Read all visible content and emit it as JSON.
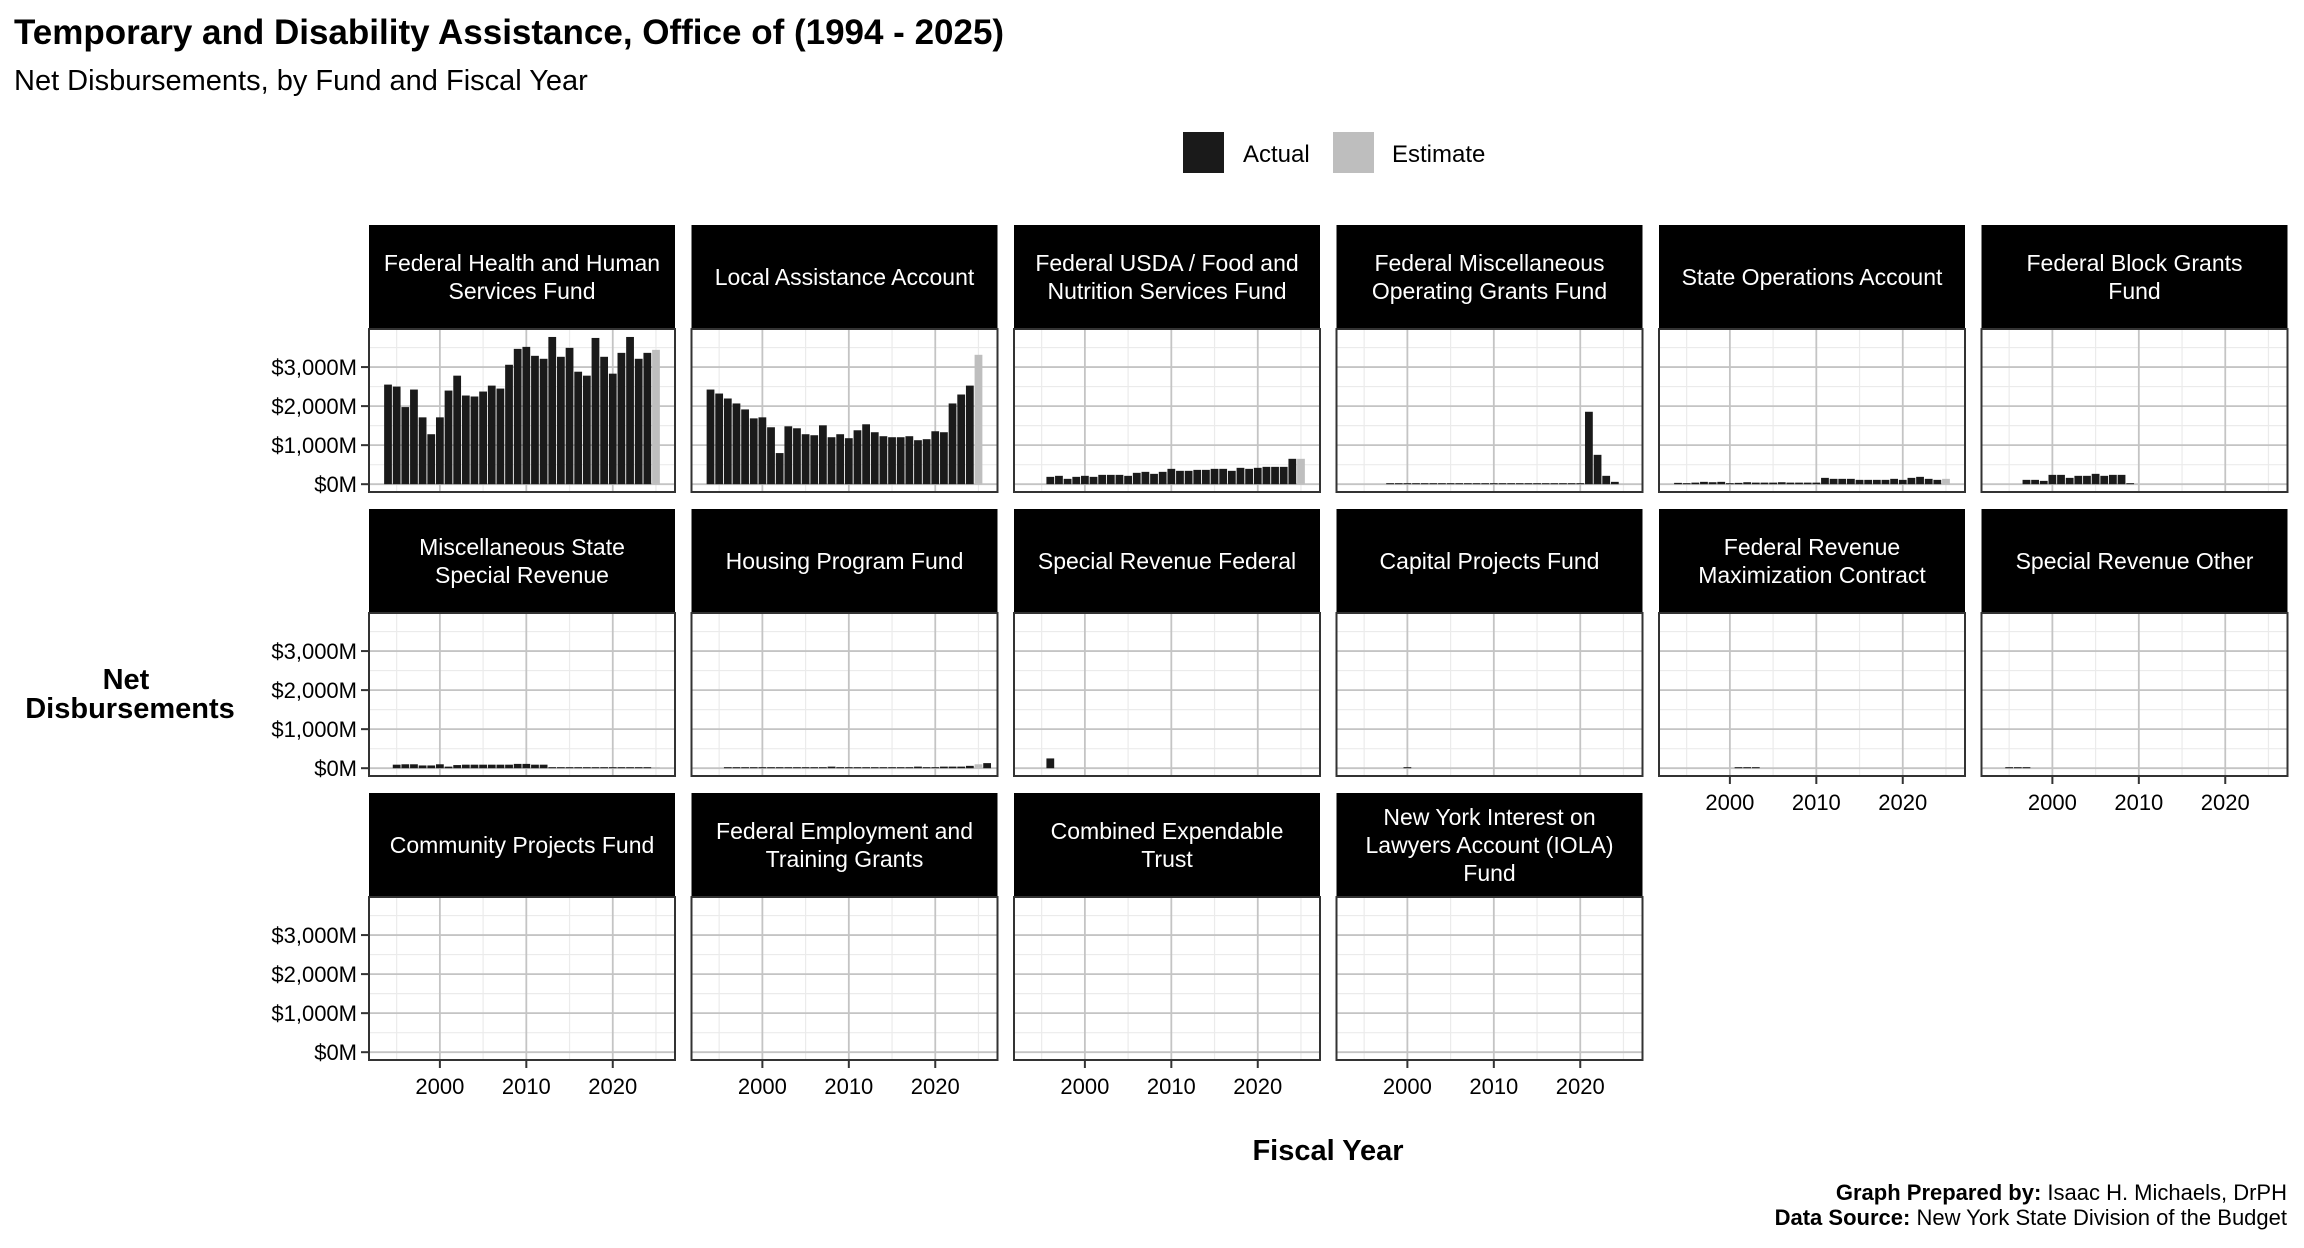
{
  "chart_data": {
    "type": "bar",
    "title": "Temporary and Disability Assistance, Office of (1994 - 2025)",
    "subtitle": "Net Disbursements, by Fund and Fiscal Year",
    "xlabel": "Fiscal Year",
    "ylabel": [
      "Net",
      "Disbursements"
    ],
    "xlim": [
      1991.8,
      2027.2
    ],
    "ylim": [
      -200,
      3975
    ],
    "x_ticks": [
      2000,
      2010,
      2020
    ],
    "y_ticks": [
      0,
      1000,
      2000,
      3000
    ],
    "y_tick_labels": [
      "$0M",
      "$1,000M",
      "$2,000M",
      "$3,000M"
    ],
    "grid": true,
    "legend": {
      "placement": "top",
      "entries": [
        {
          "label": "Actual",
          "color": "#1a1a1a"
        },
        {
          "label": "Estimate",
          "color": "#bebebe"
        }
      ]
    },
    "estimate_year": 2025,
    "units": "millions of dollars",
    "panels": [
      {
        "name": [
          "Federal Health and Human",
          "Services Fund"
        ],
        "start_year": 1994,
        "values": [
          2551,
          2500,
          1975,
          2424,
          1712,
          1280,
          1712,
          2398,
          2780,
          2271,
          2246,
          2373,
          2525,
          2449,
          3059,
          3466,
          3517,
          3288,
          3212,
          3771,
          3263,
          3492,
          2881,
          2780,
          3746,
          3263,
          2831,
          3364,
          3771,
          3212,
          3364,
          3441
        ]
      },
      {
        "name": [
          "Local Assistance Account"
        ],
        "start_year": 1994,
        "values": [
          2424,
          2322,
          2195,
          2068,
          1915,
          1686,
          1712,
          1458,
          797,
          1483,
          1432,
          1280,
          1254,
          1508,
          1203,
          1280,
          1178,
          1381,
          1534,
          1331,
          1229,
          1203,
          1203,
          1229,
          1127,
          1153,
          1356,
          1331,
          2068,
          2297,
          2525,
          3314
        ]
      },
      {
        "name": [
          "Federal USDA / Food and",
          "Nutrition Services Fund"
        ],
        "start_year": 1996,
        "values": [
          188,
          214,
          137,
          188,
          214,
          188,
          239,
          239,
          239,
          214,
          291,
          316,
          265,
          316,
          393,
          342,
          342,
          367,
          367,
          393,
          393,
          342,
          419,
          393,
          419,
          444,
          444,
          444,
          650,
          650
        ]
      },
      {
        "name": [
          "Federal Miscellaneous",
          "Operating Grants Fund"
        ],
        "start_year": 1998,
        "values": [
          5,
          5,
          5,
          5,
          5,
          5,
          5,
          5,
          5,
          5,
          5,
          20,
          20,
          20,
          5,
          5,
          5,
          5,
          5,
          5,
          5,
          5,
          5,
          1855,
          752,
          214,
          60
        ]
      },
      {
        "name": [
          "State Operations Account"
        ],
        "start_year": 1994,
        "values": [
          34,
          9,
          40,
          60,
          50,
          60,
          20,
          34,
          50,
          40,
          40,
          40,
          50,
          40,
          40,
          40,
          40,
          162,
          137,
          137,
          137,
          111,
          111,
          111,
          111,
          137,
          111,
          162,
          188,
          137,
          111,
          137
        ]
      },
      {
        "name": [
          "Federal Block Grants",
          "Fund"
        ],
        "start_year": 1997,
        "values": [
          111,
          111,
          85,
          239,
          239,
          162,
          214,
          214,
          265,
          214,
          239,
          239,
          5
        ]
      },
      {
        "name": [
          "Miscellaneous State",
          "Special Revenue"
        ],
        "start_year": 1995,
        "values": [
          90,
          100,
          100,
          70,
          70,
          100,
          40,
          80,
          90,
          90,
          90,
          90,
          90,
          90,
          110,
          110,
          90,
          90,
          20,
          0,
          0,
          0,
          0,
          5,
          5,
          10,
          0,
          0,
          5,
          0,
          10
        ]
      },
      {
        "name": [
          "Housing Program Fund"
        ],
        "start_year": 1996,
        "values": [
          20,
          20,
          0,
          20,
          20,
          20,
          20,
          20,
          20,
          20,
          20,
          20,
          40,
          20,
          20,
          20,
          20,
          20,
          20,
          20,
          20,
          20,
          40,
          20,
          20,
          40,
          40,
          40,
          60,
          100,
          130
        ]
      },
      {
        "name": [
          "Special Revenue Federal"
        ],
        "start_year": 1996,
        "values": [
          250
        ]
      },
      {
        "name": [
          "Capital Projects Fund"
        ],
        "start_year": 2000,
        "values": [
          10
        ]
      },
      {
        "name": [
          "Federal Revenue",
          "Maximization Contract"
        ],
        "start_year": 2001,
        "values": [
          8,
          12,
          8
        ]
      },
      {
        "name": [
          "Special Revenue Other"
        ],
        "start_year": 1995,
        "values": [
          8,
          8,
          8
        ]
      },
      {
        "name": [
          "Community Projects Fund"
        ],
        "start_year": 1994,
        "values": []
      },
      {
        "name": [
          "Federal Employment and",
          "Training Grants"
        ],
        "start_year": 1994,
        "values": []
      },
      {
        "name": [
          "Combined Expendable",
          "Trust"
        ],
        "start_year": 1994,
        "values": []
      },
      {
        "name": [
          "New York Interest on",
          "Lawyers Account (IOLA)",
          "Fund"
        ],
        "start_year": 1994,
        "values": []
      }
    ]
  },
  "caption": {
    "prepared_label": "Graph Prepared by:",
    "prepared_value": " Isaac H. Michaels, DrPH",
    "source_label": "Data Source:",
    "source_value": " New York State Division of the Budget"
  }
}
